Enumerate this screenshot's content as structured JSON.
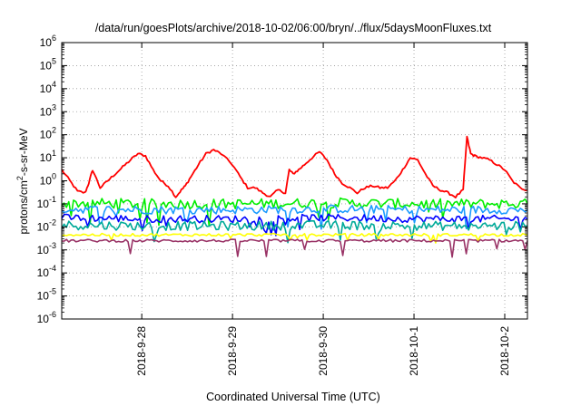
{
  "chart_data": {
    "type": "line",
    "title": "/data/run/goesPlots/archive/2018-10-02/06:00/bryn/../flux/5daysMoonFluxes.txt",
    "xlabel": "Coordinated Universal Time (UTC)",
    "ylabel": {
      "prefix": "protons/cm",
      "sup": "2",
      "suffix": "-s-sr-MeV"
    },
    "y_scale": "log",
    "ylim": [
      1e-06,
      1000000.0
    ],
    "y_ticks": [
      {
        "base": "10",
        "exp": "-6",
        "value": 1e-06
      },
      {
        "base": "10",
        "exp": "-5",
        "value": 1e-05
      },
      {
        "base": "10",
        "exp": "-4",
        "value": 0.0001
      },
      {
        "base": "10",
        "exp": "-3",
        "value": 0.001
      },
      {
        "base": "10",
        "exp": "-2",
        "value": 0.01
      },
      {
        "base": "10",
        "exp": "-1",
        "value": 0.1
      },
      {
        "base": "10",
        "exp": "0",
        "value": 1
      },
      {
        "base": "10",
        "exp": "1",
        "value": 10
      },
      {
        "base": "10",
        "exp": "2",
        "value": 100
      },
      {
        "base": "10",
        "exp": "3",
        "value": 1000
      },
      {
        "base": "10",
        "exp": "4",
        "value": 10000
      },
      {
        "base": "10",
        "exp": "5",
        "value": 100000
      },
      {
        "base": "10",
        "exp": "6",
        "value": 1000000
      }
    ],
    "xlim": [
      "2018-09-27 02:50",
      "2018-10-02 06:00"
    ],
    "x_ticks": [
      {
        "label": "2018-9-28",
        "date": "2018-09-28 00:00"
      },
      {
        "label": "2018-9-29",
        "date": "2018-09-29 00:00"
      },
      {
        "label": "2018-9-30",
        "date": "2018-09-30 00:00"
      },
      {
        "label": "2018-10-1",
        "date": "2018-10-01 00:00"
      },
      {
        "label": "2018-10-2",
        "date": "2018-10-02 00:00"
      }
    ],
    "grid": true,
    "series": [
      {
        "color": "#ff0000",
        "x": [
          "2018-09-27 02:50",
          "2018-09-27 05:00",
          "2018-09-27 07:00",
          "2018-09-27 09:00",
          "2018-09-27 10:00",
          "2018-09-27 11:00",
          "2018-09-27 13:00",
          "2018-09-27 15:00",
          "2018-09-27 17:00",
          "2018-09-27 19:00",
          "2018-09-27 21:00",
          "2018-09-27 23:00",
          "2018-09-28 01:00",
          "2018-09-28 03:00",
          "2018-09-28 05:00",
          "2018-09-28 07:00",
          "2018-09-28 09:00",
          "2018-09-28 10:30",
          "2018-09-28 11:30",
          "2018-09-28 13:00",
          "2018-09-28 15:00",
          "2018-09-28 17:00",
          "2018-09-28 19:00",
          "2018-09-28 21:00",
          "2018-09-29 00:00",
          "2018-09-29 02:00",
          "2018-09-29 04:00",
          "2018-09-29 06:00",
          "2018-09-29 08:00",
          "2018-09-29 10:00",
          "2018-09-29 12:00",
          "2018-09-29 14:00",
          "2018-09-29 15:00",
          "2018-09-29 16:00",
          "2018-09-29 17:30",
          "2018-09-29 19:00",
          "2018-09-29 21:00",
          "2018-09-29 23:00",
          "2018-09-30 01:00",
          "2018-09-30 03:00",
          "2018-09-30 05:00",
          "2018-09-30 07:00",
          "2018-09-30 09:00",
          "2018-09-30 11:00",
          "2018-09-30 13:00",
          "2018-09-30 15:00",
          "2018-09-30 17:00",
          "2018-09-30 19:00",
          "2018-09-30 21:00",
          "2018-09-30 23:00",
          "2018-10-01 01:00",
          "2018-10-01 03:00",
          "2018-10-01 05:00",
          "2018-10-01 07:00",
          "2018-10-01 09:00",
          "2018-10-01 11:00",
          "2018-10-01 13:00",
          "2018-10-01 14:00",
          "2018-10-01 15:00",
          "2018-10-01 16:00",
          "2018-10-01 18:00",
          "2018-10-01 20:00",
          "2018-10-01 22:00",
          "2018-10-02 00:00",
          "2018-10-02 02:00",
          "2018-10-02 04:00",
          "2018-10-02 06:00"
        ],
        "y": [
          3.0,
          1.0,
          0.35,
          0.3,
          0.8,
          3.0,
          0.5,
          1.0,
          2.0,
          4.0,
          8.0,
          15.0,
          12.0,
          3.0,
          1.0,
          0.6,
          0.2,
          0.4,
          0.6,
          1.5,
          5.0,
          15.0,
          22.0,
          15.0,
          5.0,
          1.5,
          0.5,
          0.5,
          0.3,
          0.2,
          0.4,
          0.3,
          3.0,
          2.0,
          3.0,
          5.0,
          10.0,
          18.0,
          8.0,
          2.0,
          0.8,
          0.5,
          0.3,
          0.5,
          0.6,
          0.5,
          0.5,
          1.0,
          3.0,
          10.0,
          8.0,
          2.0,
          0.6,
          0.4,
          0.3,
          0.2,
          0.4,
          80.0,
          15.0,
          12.0,
          10.0,
          8.0,
          5.0,
          3.0,
          1.0,
          0.5,
          0.4
        ]
      },
      {
        "color": "#00ee00",
        "x": [
          "2018-09-27 02:50",
          "2018-09-28 02:00",
          "2018-09-29 02:00",
          "2018-09-30 02:00",
          "2018-10-01 02:00",
          "2018-10-02 06:00"
        ],
        "y": [
          0.11,
          0.1,
          0.1,
          0.11,
          0.1,
          0.1
        ]
      },
      {
        "color": "#1b9bff",
        "x": [
          "2018-09-27 02:50",
          "2018-09-28 02:00",
          "2018-09-29 02:00",
          "2018-09-30 02:00",
          "2018-10-01 02:00",
          "2018-10-02 06:00"
        ],
        "y": [
          0.06,
          0.055,
          0.055,
          0.06,
          0.055,
          0.055
        ]
      },
      {
        "color": "#0000ff",
        "x": [
          "2018-09-27 02:50",
          "2018-09-28 02:00",
          "2018-09-29 02:00",
          "2018-09-30 02:00",
          "2018-10-01 02:00",
          "2018-10-02 06:00"
        ],
        "y": [
          0.025,
          0.022,
          0.022,
          0.025,
          0.022,
          0.022
        ]
      },
      {
        "color": "#00aa99",
        "x": [
          "2018-09-27 02:50",
          "2018-09-28 02:00",
          "2018-09-29 02:00",
          "2018-09-30 02:00",
          "2018-10-01 02:00",
          "2018-10-02 06:00"
        ],
        "y": [
          0.012,
          0.011,
          0.011,
          0.012,
          0.011,
          0.011
        ]
      },
      {
        "color": "#ffff00",
        "x": [
          "2018-09-27 02:50",
          "2018-09-28 02:00",
          "2018-09-29 02:00",
          "2018-09-30 02:00",
          "2018-10-01 02:00",
          "2018-10-02 06:00"
        ],
        "y": [
          0.0045,
          0.0045,
          0.0045,
          0.0045,
          0.0045,
          0.0045
        ]
      },
      {
        "color": "#993366",
        "x": [
          "2018-09-27 02:50",
          "2018-09-28 02:00",
          "2018-09-29 02:00",
          "2018-09-30 02:00",
          "2018-10-01 02:00",
          "2018-10-02 06:00"
        ],
        "y": [
          0.0025,
          0.0025,
          0.0025,
          0.0025,
          0.0025,
          0.0025
        ]
      }
    ]
  }
}
